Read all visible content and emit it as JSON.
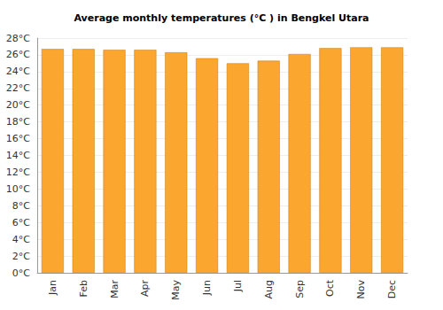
{
  "chart_data": {
    "type": "bar",
    "title": "Average monthly temperatures (°C ) in Bengkel Utara",
    "categories": [
      "Jan",
      "Feb",
      "Mar",
      "Apr",
      "May",
      "Jun",
      "Jul",
      "Aug",
      "Sep",
      "Oct",
      "Nov",
      "Dec"
    ],
    "values": [
      26.7,
      26.7,
      26.6,
      26.6,
      26.3,
      25.6,
      25.0,
      25.3,
      26.1,
      26.8,
      26.9,
      26.9
    ],
    "color": "#fba62f",
    "ylim": [
      0,
      28
    ],
    "yticks": [
      {
        "value": 0,
        "label": "0°C"
      },
      {
        "value": 2,
        "label": "2°C"
      },
      {
        "value": 4,
        "label": "4°C"
      },
      {
        "value": 6,
        "label": "6°C"
      },
      {
        "value": 8,
        "label": "8°C"
      },
      {
        "value": 10,
        "label": "10°C"
      },
      {
        "value": 12,
        "label": "12°C"
      },
      {
        "value": 14,
        "label": "14°C"
      },
      {
        "value": 16,
        "label": "16°C"
      },
      {
        "value": 18,
        "label": "18°C"
      },
      {
        "value": 20,
        "label": "20°C"
      },
      {
        "value": 22,
        "label": "22°C"
      },
      {
        "value": 24,
        "label": "24°C"
      },
      {
        "value": 26,
        "label": "26°C"
      },
      {
        "value": 28,
        "label": "28°C"
      }
    ],
    "grid": true
  }
}
